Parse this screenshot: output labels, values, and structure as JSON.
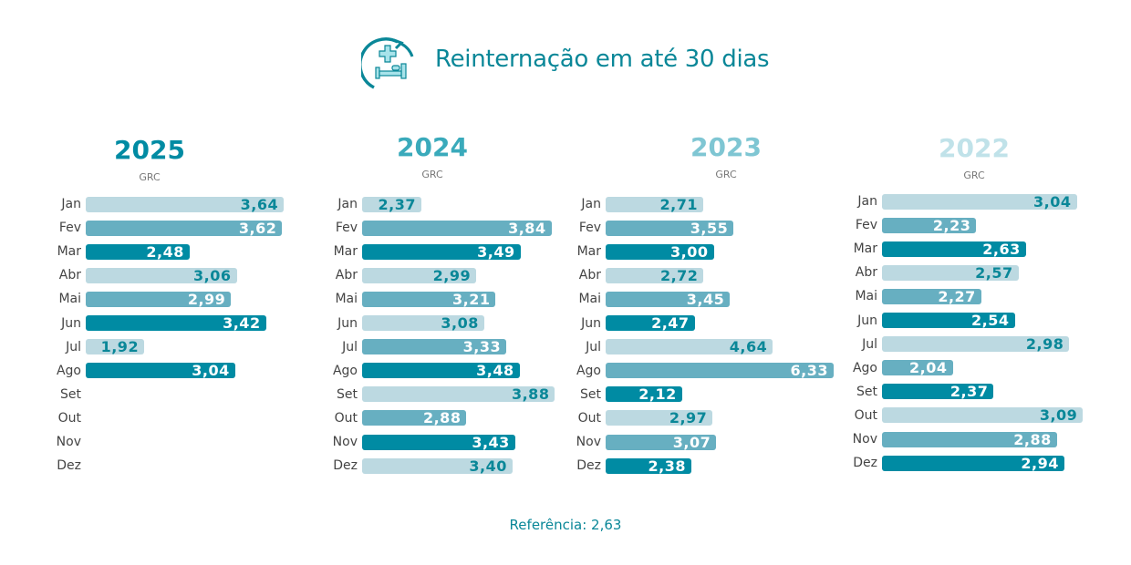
{
  "chart_data": {
    "type": "bar",
    "orientation": "horizontal",
    "title": "Reinternação em até 30 dias",
    "icon": "hospital-bed-readmission-icon",
    "categories": [
      "Jan",
      "Fev",
      "Mar",
      "Abr",
      "Mai",
      "Jun",
      "Jul",
      "Ago",
      "Set",
      "Out",
      "Nov",
      "Dez"
    ],
    "colors": {
      "light": "#bcd9e1",
      "mid": "#67afc1",
      "dark": "#008ba3",
      "text_teal": "#0a8798"
    },
    "panels": [
      {
        "year": "2025",
        "subtitle": "GRC",
        "year_color": "#008ba3",
        "values": [
          3.64,
          3.62,
          2.48,
          3.06,
          2.99,
          3.42,
          1.92,
          3.04,
          null,
          null,
          null,
          null
        ],
        "labels": [
          "3,64",
          "3,62",
          "2,48",
          "3,06",
          "2,99",
          "3,42",
          "1,92",
          "3,04",
          "",
          "",
          "",
          ""
        ],
        "shades": [
          "light",
          "mid",
          "dark",
          "light",
          "mid",
          "dark",
          "light",
          "dark",
          null,
          null,
          null,
          null
        ]
      },
      {
        "year": "2024",
        "subtitle": "GRC",
        "year_color": "#3aaabb",
        "values": [
          2.37,
          3.84,
          3.49,
          2.99,
          3.21,
          3.08,
          3.33,
          3.48,
          3.88,
          2.88,
          3.43,
          3.4
        ],
        "labels": [
          "2,37",
          "3,84",
          "3,49",
          "2,99",
          "3,21",
          "3,08",
          "3,33",
          "3,48",
          "3,88",
          "2,88",
          "3,43",
          "3,40"
        ],
        "shades": [
          "light",
          "mid",
          "dark",
          "light",
          "mid",
          "light",
          "mid",
          "dark",
          "light",
          "mid",
          "dark",
          "light"
        ]
      },
      {
        "year": "2023",
        "subtitle": "GRC",
        "year_color": "#7fc6d3",
        "values": [
          2.71,
          3.55,
          3.0,
          2.72,
          3.45,
          2.47,
          4.64,
          6.33,
          2.12,
          2.97,
          3.07,
          2.38
        ],
        "labels": [
          "2,71",
          "3,55",
          "3,00",
          "2,72",
          "3,45",
          "2,47",
          "4,64",
          "6,33",
          "2,12",
          "2,97",
          "3,07",
          "2,38"
        ],
        "shades": [
          "light",
          "mid",
          "dark",
          "light",
          "mid",
          "dark",
          "light",
          "mid",
          "dark",
          "light",
          "mid",
          "dark"
        ]
      },
      {
        "year": "2022",
        "subtitle": "GRC",
        "year_color": "#c0e2e9",
        "values": [
          3.04,
          2.23,
          2.63,
          2.57,
          2.27,
          2.54,
          2.98,
          2.04,
          2.37,
          3.09,
          2.88,
          2.94
        ],
        "labels": [
          "3,04",
          "2,23",
          "2,63",
          "2,57",
          "2,27",
          "2,54",
          "2,98",
          "2,04",
          "2,37",
          "3,09",
          "2,88",
          "2,94"
        ],
        "shades": [
          "light",
          "mid",
          "dark",
          "light",
          "mid",
          "dark",
          "light",
          "mid",
          "dark",
          "light",
          "mid",
          "dark"
        ]
      }
    ],
    "reference": "Referência: 2,63"
  }
}
